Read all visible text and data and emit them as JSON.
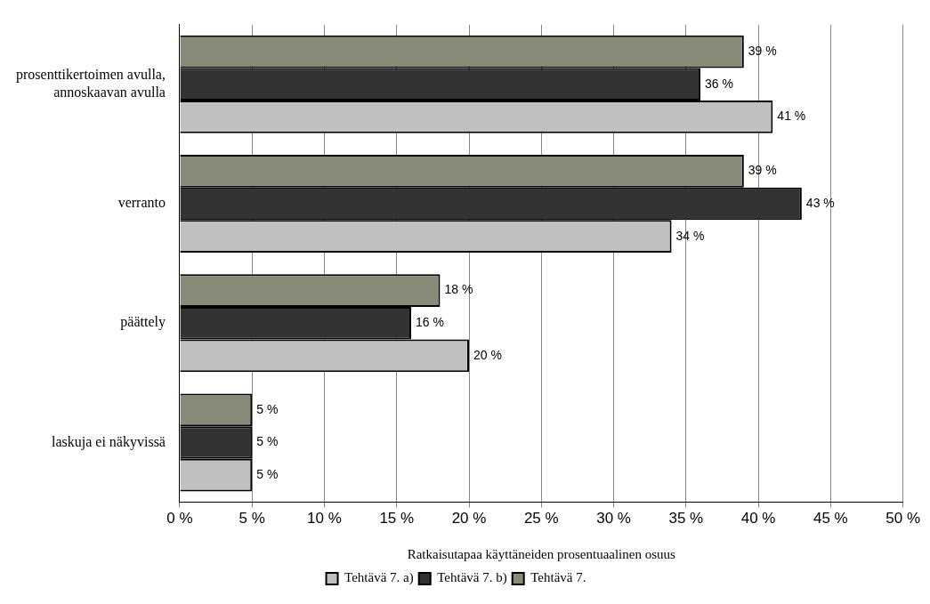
{
  "chart_data": {
    "type": "bar",
    "orientation": "horizontal",
    "xlabel": "Ratkaisutapaa käyttäneiden prosentuaalinen osuus",
    "categories": [
      "prosenttikertoimen avulla, annoskaavan avulla",
      "verranto",
      "päättely",
      "laskuja ei näkyvissä"
    ],
    "series": [
      {
        "name": "Tehtävä 7.",
        "color": "#8a8a78",
        "values": [
          39,
          39,
          18,
          5
        ],
        "value_labels": [
          "39 %",
          "39 %",
          "18 %",
          "5 %"
        ]
      },
      {
        "name": "Tehtävä 7. b)",
        "color": "#333333",
        "values": [
          36,
          43,
          16,
          5
        ],
        "value_labels": [
          "36 %",
          "43 %",
          "16 %",
          "5 %"
        ]
      },
      {
        "name": "Tehtävä 7. a)",
        "color": "#c0c0c0",
        "values": [
          41,
          34,
          20,
          5
        ],
        "value_labels": [
          "41 %",
          "34 %",
          "20 %",
          "5 %"
        ]
      }
    ],
    "xlim": [
      0,
      50
    ],
    "xticks": [
      {
        "value": 0,
        "label": "0 %"
      },
      {
        "value": 5,
        "label": "5 %"
      },
      {
        "value": 10,
        "label": "10 %"
      },
      {
        "value": 15,
        "label": "15 %"
      },
      {
        "value": 20,
        "label": "20 %"
      },
      {
        "value": 25,
        "label": "25 %"
      },
      {
        "value": 30,
        "label": "30 %"
      },
      {
        "value": 35,
        "label": "35 %"
      },
      {
        "value": 40,
        "label": "40 %"
      },
      {
        "value": 45,
        "label": "45 %"
      },
      {
        "value": 50,
        "label": "50 %"
      }
    ],
    "grid": "x",
    "legend": "bottom"
  }
}
